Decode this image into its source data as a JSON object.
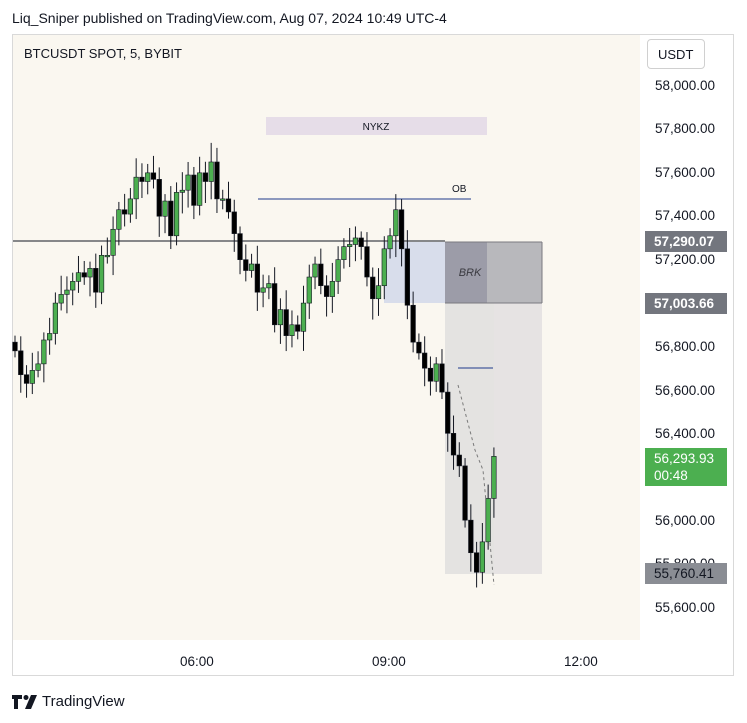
{
  "header": {
    "published_text": "Liq_Sniper published on TradingView.com, Aug 07, 2024 10:49 UTC-4"
  },
  "symbol": "BTCUSDT SPOT, 5, BYBIT",
  "currency_button": "USDT",
  "price_labels": [
    "58,000.00",
    "57,800.00",
    "57,600.00",
    "57,400.00",
    "57,200.00",
    "56,800.00",
    "56,600.00",
    "56,400.00",
    "56,000.00",
    "55,600.00"
  ],
  "price_tags": {
    "level_high": "57,290.07",
    "level_mid": "57,003.66",
    "current_price": "56,293.93",
    "countdown": "00:48",
    "level_low": "55,760.41",
    "partial_hidden": "55,800.00"
  },
  "time_labels": [
    "06:00",
    "09:00",
    "12:00"
  ],
  "annotations": {
    "session_box": "NYKZ",
    "order_block": "OB",
    "break_box": "BRK"
  },
  "footer": {
    "brand": "TradingView"
  },
  "colors": {
    "bull": "#4caf50",
    "bear": "#000000",
    "accent_green": "#4caf50",
    "session_fill": "#e6dde8",
    "brk_fill": "#b8b8c2",
    "zone_fill": "#dadada"
  },
  "chart_data": {
    "type": "candlestick",
    "title": "BTCUSDT SPOT, 5, BYBIT",
    "ylabel": "USDT",
    "ylim": [
      55500,
      58100
    ],
    "x_ticks": [
      "06:00",
      "09:00",
      "12:00"
    ],
    "bars_visible": 84,
    "closes_approx": [
      56780,
      56670,
      56630,
      56690,
      56720,
      56830,
      56860,
      57000,
      57040,
      57060,
      57100,
      57140,
      57120,
      57160,
      57050,
      57220,
      57220,
      57340,
      57430,
      57410,
      57480,
      57580,
      57560,
      57600,
      57570,
      57400,
      57470,
      57310,
      57510,
      57520,
      57590,
      57450,
      57600,
      57560,
      57650,
      57480,
      57480,
      57420,
      57320,
      57200,
      57150,
      57180,
      57050,
      57070,
      57090,
      56900,
      56970,
      56850,
      56900,
      56870,
      57000,
      57120,
      57180,
      57080,
      57030,
      57100,
      57200,
      57260,
      57270,
      57300,
      57260,
      57120,
      57020,
      57080,
      57250,
      57310,
      57430,
      57250,
      56990,
      56820,
      56770,
      56700,
      56640,
      56720,
      56590,
      56400,
      56300,
      56250,
      56000,
      55850,
      55760,
      55900,
      56100,
      56294
    ],
    "levels": [
      {
        "label": "OB",
        "price": 57470
      },
      {
        "label": "",
        "price": 57290
      },
      {
        "label": "",
        "price": 57003
      },
      {
        "label": "",
        "price": 56710
      }
    ]
  }
}
